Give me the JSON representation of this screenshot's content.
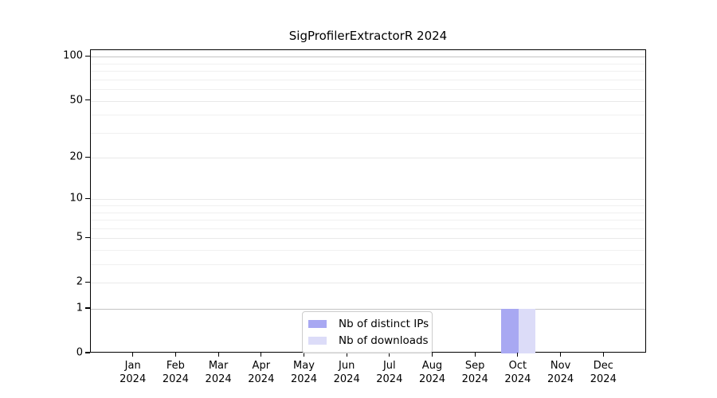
{
  "chart_data": {
    "type": "bar",
    "title": "SigProfilerExtractorR 2024",
    "xlabel": "",
    "ylabel": "",
    "categories": [
      "Jan 2024",
      "Feb 2024",
      "Mar 2024",
      "Apr 2024",
      "May 2024",
      "Jun 2024",
      "Jul 2024",
      "Aug 2024",
      "Sep 2024",
      "Oct 2024",
      "Nov 2024",
      "Dec 2024"
    ],
    "series": [
      {
        "name": "Nb of distinct IPs",
        "color": "#a8a8f2",
        "values": [
          0,
          0,
          0,
          0,
          0,
          0,
          0,
          0,
          0,
          1,
          0,
          0
        ]
      },
      {
        "name": "Nb of downloads",
        "color": "#dcdcf8",
        "values": [
          0,
          0,
          0,
          0,
          0,
          0,
          0,
          0,
          0,
          1,
          0,
          0
        ]
      }
    ],
    "yscale": "log1p",
    "ylim": [
      0,
      111
    ],
    "y_major_ticks": [
      0,
      1,
      2,
      5,
      10,
      20,
      50,
      100
    ],
    "y_minor_ticks": [
      3,
      4,
      6,
      7,
      8,
      9,
      30,
      40,
      60,
      70,
      80,
      90
    ],
    "y_emphasized_gridlines": [
      1,
      100
    ],
    "grid": true,
    "legend_position": "lower center"
  }
}
